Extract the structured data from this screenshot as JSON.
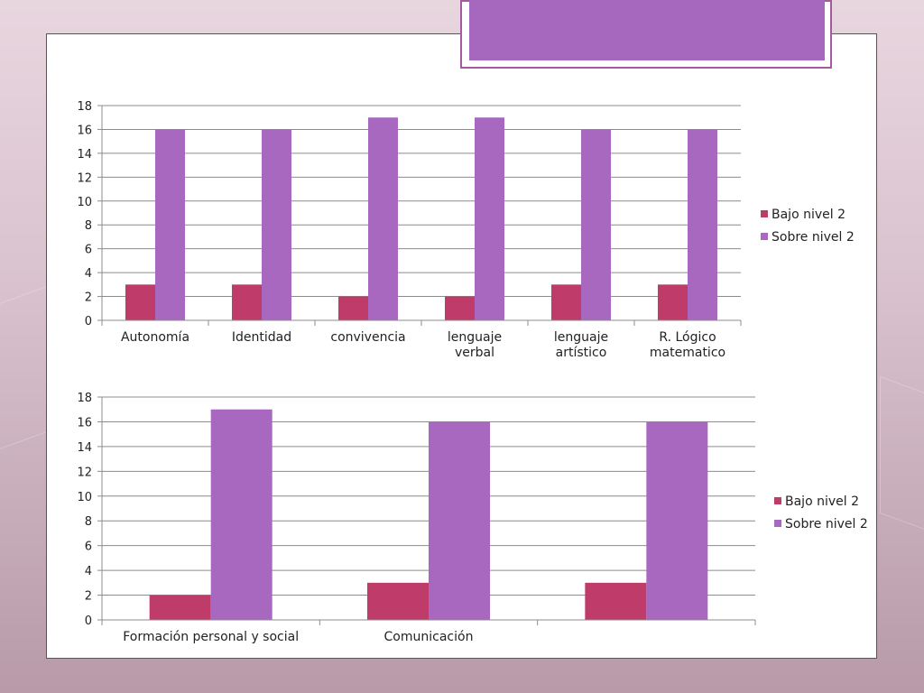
{
  "colors": {
    "bajo": "#bf3c6a",
    "sobre": "#a968c0",
    "title_bar": "#a667bf",
    "grid": "#8c8c8c"
  },
  "chart_data": [
    {
      "type": "bar",
      "categories": [
        "Autonomía",
        "Identidad",
        "convivencia",
        "lenguaje verbal",
        "lenguaje artístico",
        "R. Lógico matematico"
      ],
      "series": [
        {
          "name": "Bajo nivel 2",
          "values": [
            3,
            3,
            2,
            2,
            3,
            3
          ]
        },
        {
          "name": "Sobre nivel 2",
          "values": [
            16,
            16,
            17,
            17,
            16,
            16
          ]
        }
      ],
      "ylim": [
        0,
        18
      ],
      "yticks": [
        0,
        2,
        4,
        6,
        8,
        10,
        12,
        14,
        16,
        18
      ],
      "grid": true,
      "legend": "right"
    },
    {
      "type": "bar",
      "categories": [
        "Formación personal y social",
        "Comunicación",
        ""
      ],
      "series": [
        {
          "name": "Bajo nivel 2",
          "values": [
            2,
            3,
            3
          ]
        },
        {
          "name": "Sobre nivel 2",
          "values": [
            17,
            16,
            16
          ]
        }
      ],
      "ylim": [
        0,
        18
      ],
      "yticks": [
        0,
        2,
        4,
        6,
        8,
        10,
        12,
        14,
        16,
        18
      ],
      "grid": true,
      "legend": "right"
    }
  ]
}
